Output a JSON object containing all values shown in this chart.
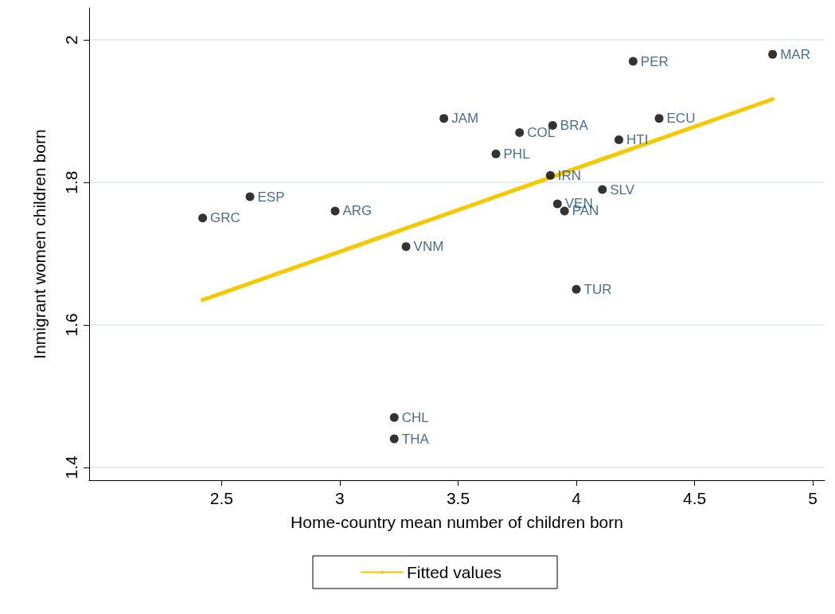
{
  "chart_data": {
    "type": "scatter",
    "xlabel": "Home-country mean number of children born",
    "ylabel": "Inmigrant women children born",
    "xlim": [
      1.94,
      5.05
    ],
    "ylim": [
      1.382,
      2.045
    ],
    "xticks": [
      2.5,
      3,
      3.5,
      4,
      4.5,
      5
    ],
    "yticks": [
      1.4,
      1.6,
      1.8,
      2
    ],
    "grid": "y",
    "legend": "bottom",
    "marker": "circle",
    "series": [
      {
        "color": "#000000",
        "x": [
          2.42,
          2.62,
          2.98,
          3.28,
          3.23,
          3.23,
          3.44,
          3.66,
          3.76,
          3.9,
          3.89,
          3.92,
          3.95,
          4.0,
          4.11,
          4.18,
          4.24,
          4.35,
          4.83
        ],
        "values": [
          1.75,
          1.78,
          1.76,
          1.71,
          1.47,
          1.44,
          1.89,
          1.84,
          1.87,
          1.88,
          1.81,
          1.77,
          1.76,
          1.65,
          1.79,
          1.86,
          1.97,
          1.89,
          1.98
        ],
        "value_labels": [
          "GRC",
          "ESP",
          "ARG",
          "VNM",
          "CHL",
          "THA",
          "JAM",
          "PHL",
          "COL",
          "BRA",
          "IRN",
          "VEN",
          "PAN",
          "TUR",
          "SLV",
          "HTI",
          "PER",
          "ECU",
          "MAR"
        ]
      },
      {
        "type": "line",
        "name": "Fitted values",
        "color": "#f5c800",
        "marker": "none",
        "x": [
          2.42,
          4.83
        ],
        "values": [
          1.635,
          1.917
        ]
      }
    ]
  }
}
